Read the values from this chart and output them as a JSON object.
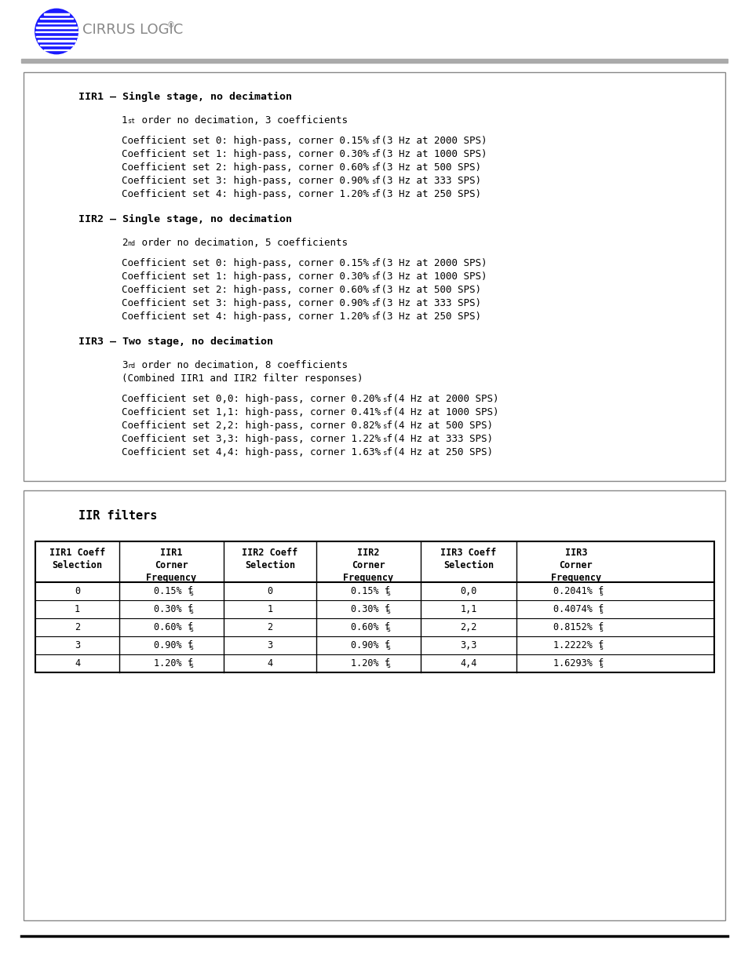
{
  "bg_color": "#ffffff",
  "box1_title": "IIR1 – Single stage, no decimation",
  "box1_order": "1",
  "box1_order_sup": "st",
  "box1_order_rest": " order no decimation, 3 coefficients",
  "box1_lines": [
    [
      "Coefficient set 0: high-pass, corner 0.15% f",
      "s",
      " (3 Hz at 2000 SPS)"
    ],
    [
      "Coefficient set 1: high-pass, corner 0.30% f",
      "s",
      " (3 Hz at 1000 SPS)"
    ],
    [
      "Coefficient set 2: high-pass, corner 0.60% f",
      "s",
      " (3 Hz at 500 SPS)"
    ],
    [
      "Coefficient set 3: high-pass, corner 0.90% f",
      "s",
      " (3 Hz at 333 SPS)"
    ],
    [
      "Coefficient set 4: high-pass, corner 1.20% f",
      "s",
      " (3 Hz at 250 SPS)"
    ]
  ],
  "box2_title": "IIR2 – Single stage, no decimation",
  "box2_order": "2",
  "box2_order_sup": "nd",
  "box2_order_rest": " order no decimation, 5 coefficients",
  "box2_lines": [
    [
      "Coefficient set 0: high-pass, corner 0.15% f",
      "s",
      " (3 Hz at 2000 SPS)"
    ],
    [
      "Coefficient set 1: high-pass, corner 0.30% f",
      "s",
      " (3 Hz at 1000 SPS)"
    ],
    [
      "Coefficient set 2: high-pass, corner 0.60% f",
      "s",
      " (3 Hz at 500 SPS)"
    ],
    [
      "Coefficient set 3: high-pass, corner 0.90% f",
      "s",
      " (3 Hz at 333 SPS)"
    ],
    [
      "Coefficient set 4: high-pass, corner 1.20% f",
      "s",
      " (3 Hz at 250 SPS)"
    ]
  ],
  "box3_title": "IIR3 – Two stage, no decimation",
  "box3_order": "3",
  "box3_order_sup": "rd",
  "box3_order_rest": " order no decimation, 8 coefficients",
  "box3_sub2": "(Combined IIR1 and IIR2 filter responses)",
  "box3_lines": [
    [
      "Coefficient set 0,0: high-pass, corner 0.20% f",
      "s",
      " (4 Hz at 2000 SPS)"
    ],
    [
      "Coefficient set 1,1: high-pass, corner 0.41% f",
      "s",
      " (4 Hz at 1000 SPS)"
    ],
    [
      "Coefficient set 2,2: high-pass, corner 0.82% f",
      "s",
      " (4 Hz at 500 SPS)"
    ],
    [
      "Coefficient set 3,3: high-pass, corner 1.22% f",
      "s",
      " (4 Hz at 333 SPS)"
    ],
    [
      "Coefficient set 4,4: high-pass, corner 1.63% f",
      "s",
      " (4 Hz at 250 SPS)"
    ]
  ],
  "table_title": "IIR filters",
  "col_headers": [
    [
      "IIR1 Coeff",
      "Selection",
      ""
    ],
    [
      "IIR1",
      "Corner",
      "Frequency"
    ],
    [
      "IIR2 Coeff",
      "Selection",
      ""
    ],
    [
      "IIR2",
      "Corner",
      "Frequency"
    ],
    [
      "IIR3 Coeff",
      "Selection",
      ""
    ],
    [
      "IIR3",
      "Corner",
      "Frequency"
    ]
  ],
  "table_data": [
    [
      "0",
      "0.15% f_s",
      "0",
      "0.15% f_s",
      "0,0",
      "0.2041% f_s"
    ],
    [
      "1",
      "0.30% f_s",
      "1",
      "0.30% f_s",
      "1,1",
      "0.4074% f_s"
    ],
    [
      "2",
      "0.60% f_s",
      "2",
      "0.60% f_s",
      "2,2",
      "0.8152% f_s"
    ],
    [
      "3",
      "0.90% f_s",
      "3",
      "0.90% f_s",
      "3,3",
      "1.2222% f_s"
    ],
    [
      "4",
      "1.20% f_s",
      "4",
      "1.20% f_s",
      "4,4",
      "1.6293% f_s"
    ]
  ]
}
